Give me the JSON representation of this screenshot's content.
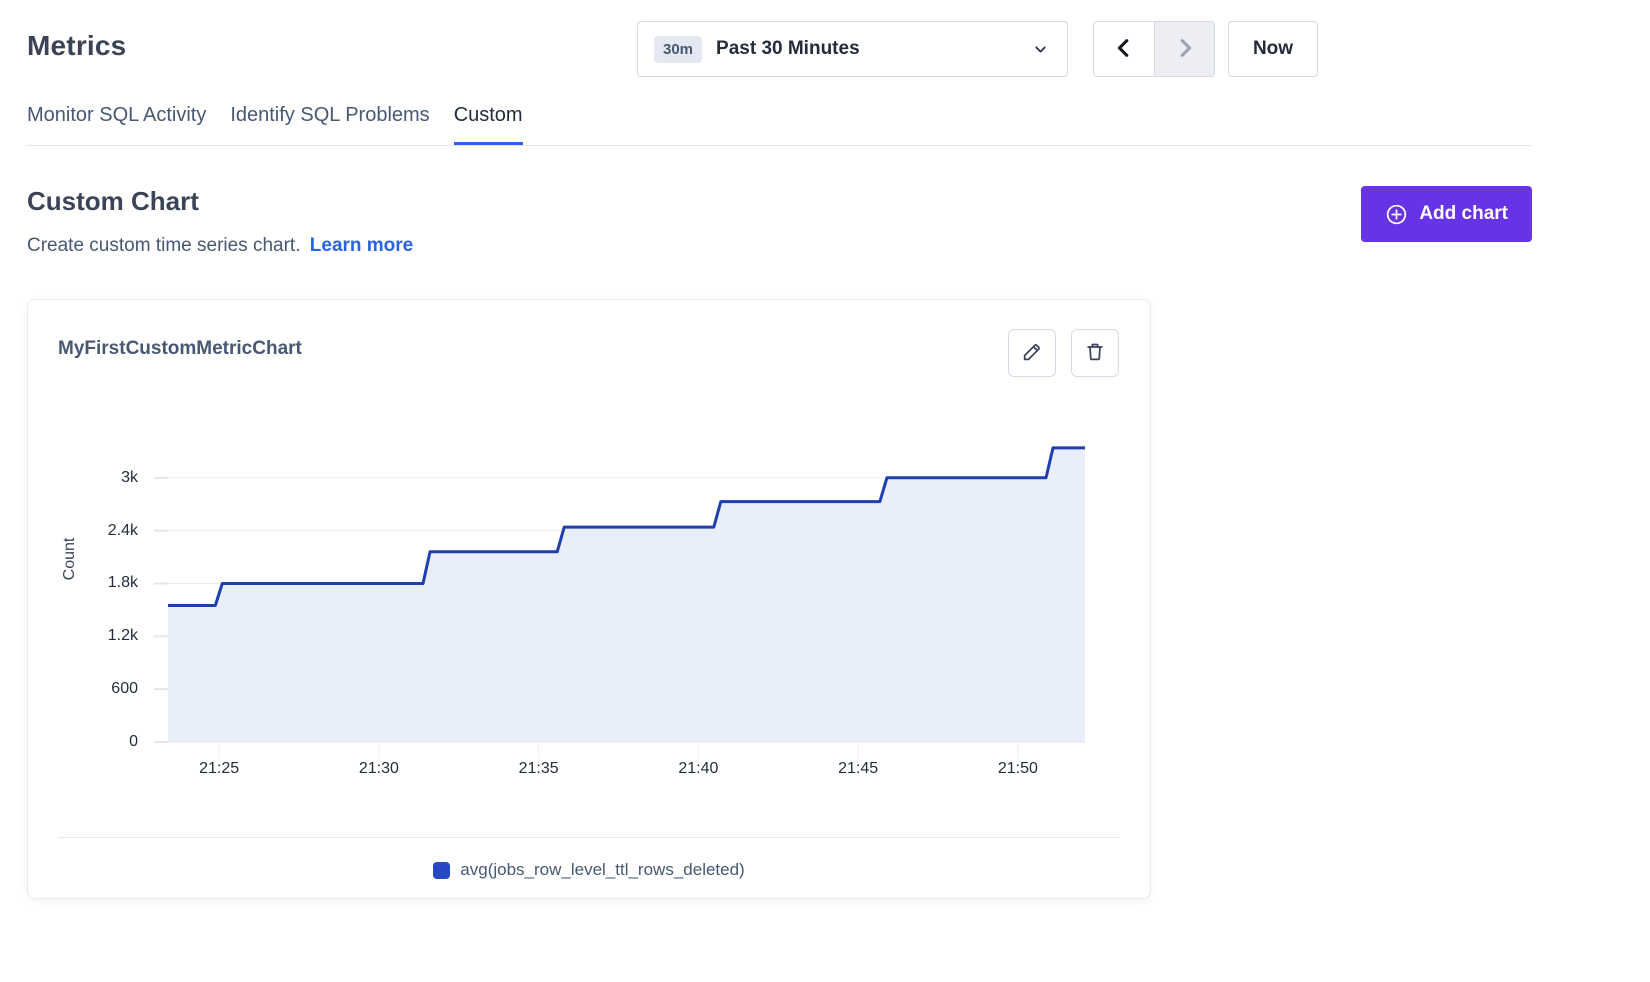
{
  "header": {
    "title": "Metrics",
    "time_picker": {
      "badge": "30m",
      "label": "Past 30 Minutes"
    },
    "now_button": "Now"
  },
  "tabs": [
    {
      "label": "Monitor SQL Activity",
      "active": false
    },
    {
      "label": "Identify SQL Problems",
      "active": false
    },
    {
      "label": "Custom",
      "active": true
    }
  ],
  "section": {
    "title": "Custom Chart",
    "subtitle": "Create custom time series chart.",
    "learn_more": "Learn more",
    "add_chart_button": "Add chart"
  },
  "card": {
    "title": "MyFirstCustomMetricChart",
    "actions": [
      {
        "name": "edit",
        "icon": "pencil-icon"
      },
      {
        "name": "delete",
        "icon": "trash-icon"
      }
    ]
  },
  "chart_data": {
    "type": "area",
    "step": true,
    "title": "MyFirstCustomMetricChart",
    "xlabel": "",
    "ylabel": "Count",
    "x_ticks": [
      "21:25",
      "21:30",
      "21:35",
      "21:40",
      "21:45",
      "21:50"
    ],
    "x_tick_minutes": [
      25,
      30,
      35,
      40,
      45,
      50
    ],
    "x_range_minutes": [
      23.4,
      52.1
    ],
    "y_ticks": [
      0,
      600,
      1200,
      1800,
      2400,
      3000
    ],
    "y_tick_labels": [
      "0",
      "600",
      "1.2k",
      "1.8k",
      "2.4k",
      "3k"
    ],
    "ylim": [
      0,
      3770
    ],
    "grid": true,
    "legend_position": "bottom-center",
    "series": [
      {
        "name": "avg(jobs_row_level_ttl_rows_deleted)",
        "color": "#1f3fae",
        "fill": "#e9eefb",
        "points_min_value": [
          [
            23.4,
            1550
          ],
          [
            25.1,
            1800
          ],
          [
            31.6,
            2160
          ],
          [
            35.8,
            2440
          ],
          [
            40.7,
            2730
          ],
          [
            45.9,
            3000
          ],
          [
            51.1,
            3340
          ],
          [
            52.1,
            3340
          ]
        ]
      }
    ],
    "legend": [
      {
        "label": "avg(jobs_row_level_ttl_rows_deleted)",
        "color": "#2748c2"
      }
    ]
  },
  "colors": {
    "accent_blue": "#2a63e5",
    "purple": "#6633e6",
    "line": "#1f3fae",
    "area_fill": "#e9eefb",
    "grid_line": "#e9ebf0",
    "axis_line": "#e2e4ea"
  }
}
